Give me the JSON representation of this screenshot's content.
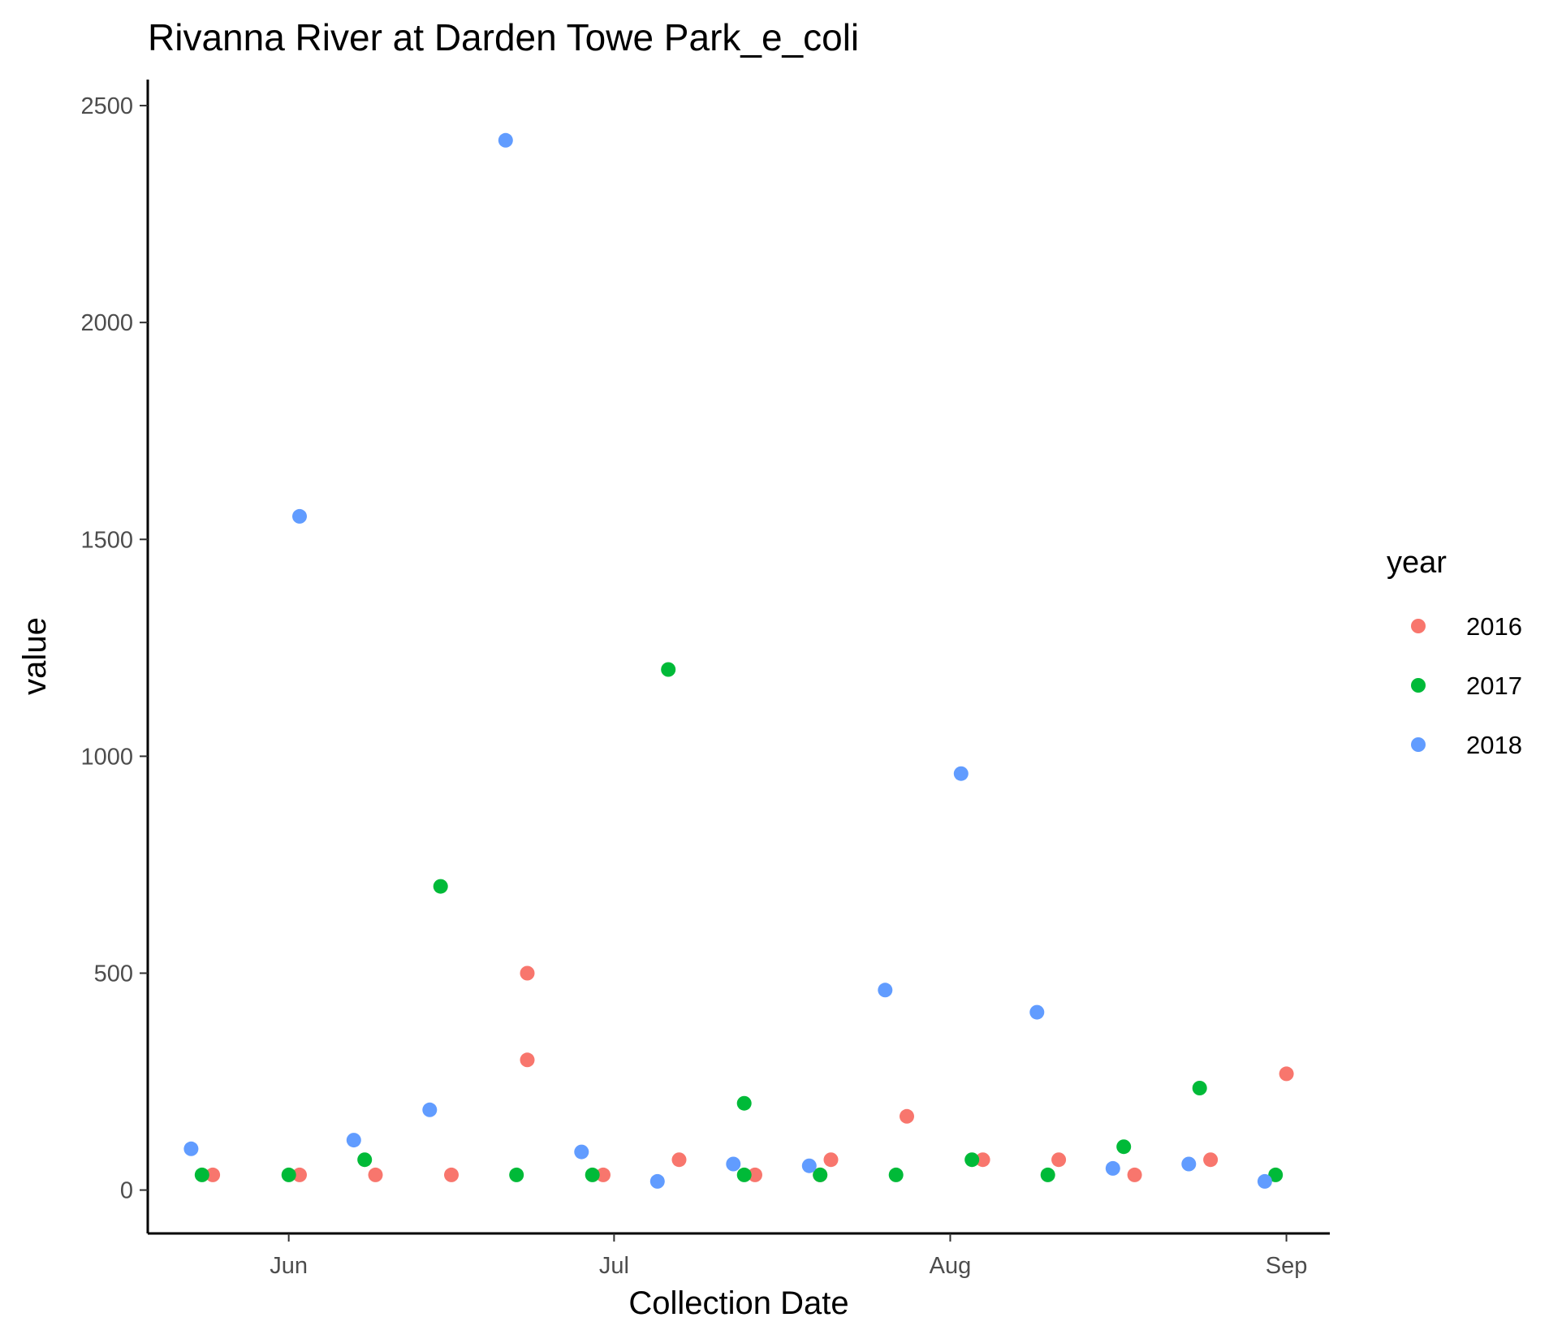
{
  "chart_data": {
    "type": "scatter",
    "title": "Rivanna River at Darden Towe Park_e_coli",
    "xlabel": "Collection Date",
    "ylabel": "value",
    "x_axis": {
      "kind": "date",
      "reference_year": 2018,
      "domain": [
        "2018-05-19",
        "2018-09-05"
      ],
      "ticks": [
        {
          "date": "2018-06-01",
          "label": "Jun"
        },
        {
          "date": "2018-07-01",
          "label": "Jul"
        },
        {
          "date": "2018-08-01",
          "label": "Aug"
        },
        {
          "date": "2018-09-01",
          "label": "Sep"
        }
      ]
    },
    "y_axis": {
      "ylim": [
        -100,
        2560
      ],
      "ticks": [
        0,
        500,
        1000,
        1500,
        2000,
        2500
      ]
    },
    "grid": false,
    "legend": {
      "title": "year",
      "placement": "right"
    },
    "series": [
      {
        "name": "2016",
        "color": "#F8766D",
        "points": [
          {
            "x": "2018-05-25",
            "y": 35
          },
          {
            "x": "2018-06-02",
            "y": 35
          },
          {
            "x": "2018-06-09",
            "y": 35
          },
          {
            "x": "2018-06-16",
            "y": 35
          },
          {
            "x": "2018-06-23",
            "y": 500
          },
          {
            "x": "2018-06-23",
            "y": 300
          },
          {
            "x": "2018-06-30",
            "y": 35
          },
          {
            "x": "2018-07-07",
            "y": 70
          },
          {
            "x": "2018-07-14",
            "y": 35
          },
          {
            "x": "2018-07-20",
            "y": 35
          },
          {
            "x": "2018-07-21",
            "y": 70
          },
          {
            "x": "2018-07-28",
            "y": 170
          },
          {
            "x": "2018-08-04",
            "y": 70
          },
          {
            "x": "2018-08-11",
            "y": 70
          },
          {
            "x": "2018-08-18",
            "y": 35
          },
          {
            "x": "2018-08-25",
            "y": 70
          },
          {
            "x": "2018-09-01",
            "y": 268
          }
        ]
      },
      {
        "name": "2017",
        "color": "#00BA38",
        "points": [
          {
            "x": "2018-05-24",
            "y": 35
          },
          {
            "x": "2018-06-01",
            "y": 35
          },
          {
            "x": "2018-06-08",
            "y": 70
          },
          {
            "x": "2018-06-15",
            "y": 700
          },
          {
            "x": "2018-06-22",
            "y": 35
          },
          {
            "x": "2018-06-29",
            "y": 35
          },
          {
            "x": "2018-07-06",
            "y": 1200
          },
          {
            "x": "2018-07-13",
            "y": 200
          },
          {
            "x": "2018-07-13",
            "y": 35
          },
          {
            "x": "2018-07-20",
            "y": 35
          },
          {
            "x": "2018-07-27",
            "y": 35
          },
          {
            "x": "2018-08-03",
            "y": 70
          },
          {
            "x": "2018-08-10",
            "y": 35
          },
          {
            "x": "2018-08-17",
            "y": 100
          },
          {
            "x": "2018-08-24",
            "y": 235
          },
          {
            "x": "2018-08-31",
            "y": 35
          }
        ]
      },
      {
        "name": "2018",
        "color": "#619CFF",
        "points": [
          {
            "x": "2018-05-23",
            "y": 95
          },
          {
            "x": "2018-06-02",
            "y": 1553
          },
          {
            "x": "2018-06-07",
            "y": 115
          },
          {
            "x": "2018-06-14",
            "y": 185
          },
          {
            "x": "2018-06-21",
            "y": 2420
          },
          {
            "x": "2018-06-28",
            "y": 88
          },
          {
            "x": "2018-07-05",
            "y": 20
          },
          {
            "x": "2018-07-12",
            "y": 60
          },
          {
            "x": "2018-07-19",
            "y": 56
          },
          {
            "x": "2018-07-26",
            "y": 461
          },
          {
            "x": "2018-08-02",
            "y": 960
          },
          {
            "x": "2018-08-09",
            "y": 410
          },
          {
            "x": "2018-08-16",
            "y": 50
          },
          {
            "x": "2018-08-23",
            "y": 60
          },
          {
            "x": "2018-08-30",
            "y": 20
          }
        ]
      }
    ]
  }
}
